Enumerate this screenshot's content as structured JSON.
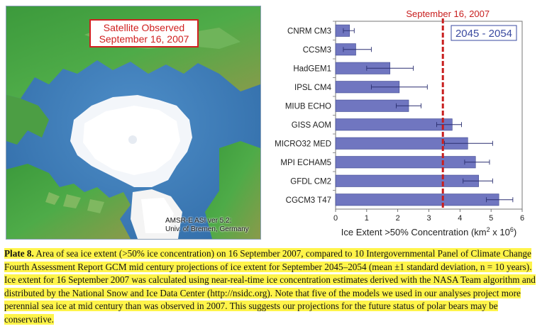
{
  "map": {
    "title_line1": "Satellite Observed",
    "title_line2": "September 16, 2007",
    "credit_line1": "AMSR-E  ASI ver 5.2:",
    "credit_line2": "Univ. of Bremen, Germany"
  },
  "caption": {
    "label": "Plate 8.",
    "text": " Area of sea ice extent (>50% ice concentration) on 16 September 2007, compared to 10 Intergovernmental Panel of Climate Change Fourth Assessment Report GCM mid century projections of ice extent for September 2045–2054 (mean ±1 standard deviation, n = 10 years). Ice extent for 16 September 2007 was calculated using near-real-time ice concentration estimates derived with the NASA Team algorithm and distributed by the National Snow and Ice Data Center (http://nsidc.org). Note that five of the models we used in our analyses project more perennial sea ice at mid century than was observed in 2007. This suggests our projections for the future status of polar bears may be conservative."
  },
  "colors": {
    "bar": "#7076c0",
    "bar_edge": "#3c4690",
    "reference_line": "#c81e1e",
    "legend_text": "#3a4aa0"
  },
  "chart_data": {
    "type": "bar",
    "orientation": "horizontal",
    "categories": [
      "CNRM CM3",
      "CCSM3",
      "HadGEM1",
      "IPSL CM4",
      "MIUB ECHO",
      "GISS AOM",
      "MICRO32 MED",
      "MPI ECHAM5",
      "GFDL CM2",
      "CGCM3 T47"
    ],
    "values": [
      0.45,
      0.65,
      1.75,
      2.05,
      2.35,
      3.75,
      4.25,
      4.5,
      4.6,
      5.25
    ],
    "error_low": [
      0.25,
      0.25,
      1.0,
      1.15,
      1.95,
      3.25,
      3.5,
      4.15,
      4.1,
      4.85
    ],
    "error_high": [
      0.6,
      1.15,
      2.5,
      2.95,
      2.75,
      4.05,
      5.05,
      4.95,
      5.05,
      5.7
    ],
    "reference_value": 3.45,
    "reference_label": "September 16, 2007",
    "legend_label": "2045 - 2054",
    "legend_position": "top-right",
    "xlim": [
      0,
      6
    ],
    "xticks": [
      "0",
      "1",
      "2",
      "3",
      "4",
      "5",
      "6"
    ],
    "xlabel_main": "Ice Extent >50% Concentration (km",
    "xlabel_sup1": "2",
    "xlabel_mid": "x 10",
    "xlabel_sup2": "6",
    "xlabel_end": ")",
    "grid": false
  }
}
